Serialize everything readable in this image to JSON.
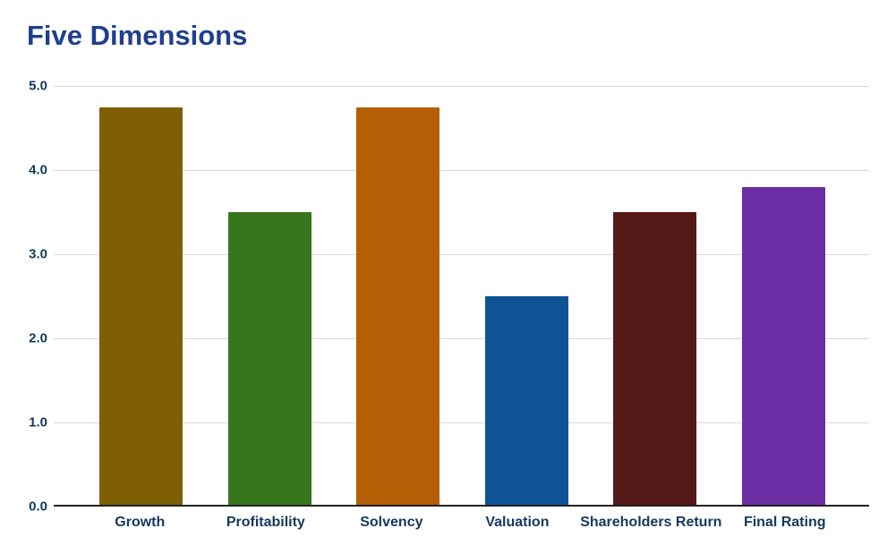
{
  "title": "Five Dimensions",
  "colors": {
    "background": "#ffffff",
    "title": "#1f3f8e",
    "axis_labels": "#14395e",
    "y_tick_labels": "#123a5e",
    "gridline": "#d9d9d9",
    "baseline": "#212121"
  },
  "chart_data": {
    "type": "bar",
    "title": "Five Dimensions",
    "categories": [
      "Growth",
      "Profitability",
      "Solvency",
      "Valuation",
      "Shareholders Return",
      "Final Rating"
    ],
    "values": [
      4.75,
      3.5,
      4.75,
      2.5,
      3.5,
      3.8
    ],
    "bar_colors": [
      "#7e5f03",
      "#38761d",
      "#b45f06",
      "#0e5494",
      "#541a17",
      "#6c2ea4"
    ],
    "xlabel": "",
    "ylabel": "",
    "ylim": [
      0,
      5
    ],
    "yticks": [
      5.0,
      4.0,
      3.0,
      2.0,
      1.0,
      0.0
    ],
    "ytick_format": "one_decimal",
    "grid": true,
    "legend_position": "none"
  }
}
